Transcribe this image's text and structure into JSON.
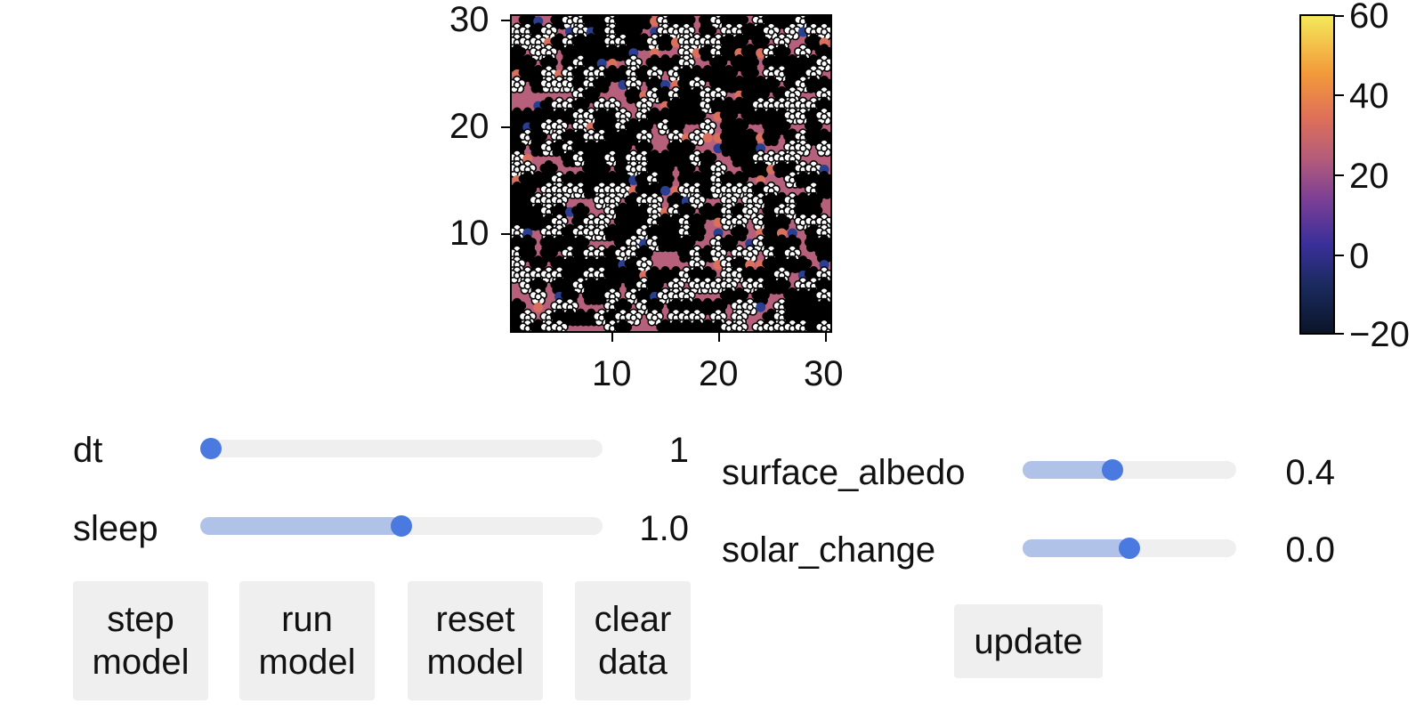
{
  "plot": {
    "x_ticks": [
      "10",
      "20",
      "30"
    ],
    "y_ticks": [
      "30",
      "20",
      "10"
    ],
    "background_color": "#b7607c"
  },
  "colorbar": {
    "ticks": [
      "60",
      "40",
      "20",
      "0",
      "−20"
    ]
  },
  "sliders": {
    "dt": {
      "label": "dt",
      "value": "1",
      "fraction": 0.0
    },
    "sleep": {
      "label": "sleep",
      "value": "1.0",
      "fraction": 0.5
    },
    "surface_albedo": {
      "label": "surface_albedo",
      "value": "0.4",
      "fraction": 0.41
    },
    "solar_change": {
      "label": "solar_change",
      "value": "0.0",
      "fraction": 0.5
    }
  },
  "buttons": {
    "step": {
      "line1": "step",
      "line2": "model"
    },
    "run": {
      "line1": "run",
      "line2": "model"
    },
    "reset": {
      "line1": "reset",
      "line2": "model"
    },
    "clear": {
      "line1": "clear",
      "line2": "data"
    },
    "update": "update"
  },
  "colors": {
    "accent": "#4a7adf",
    "accent_light": "#b0c2e8",
    "track": "#efefef"
  }
}
